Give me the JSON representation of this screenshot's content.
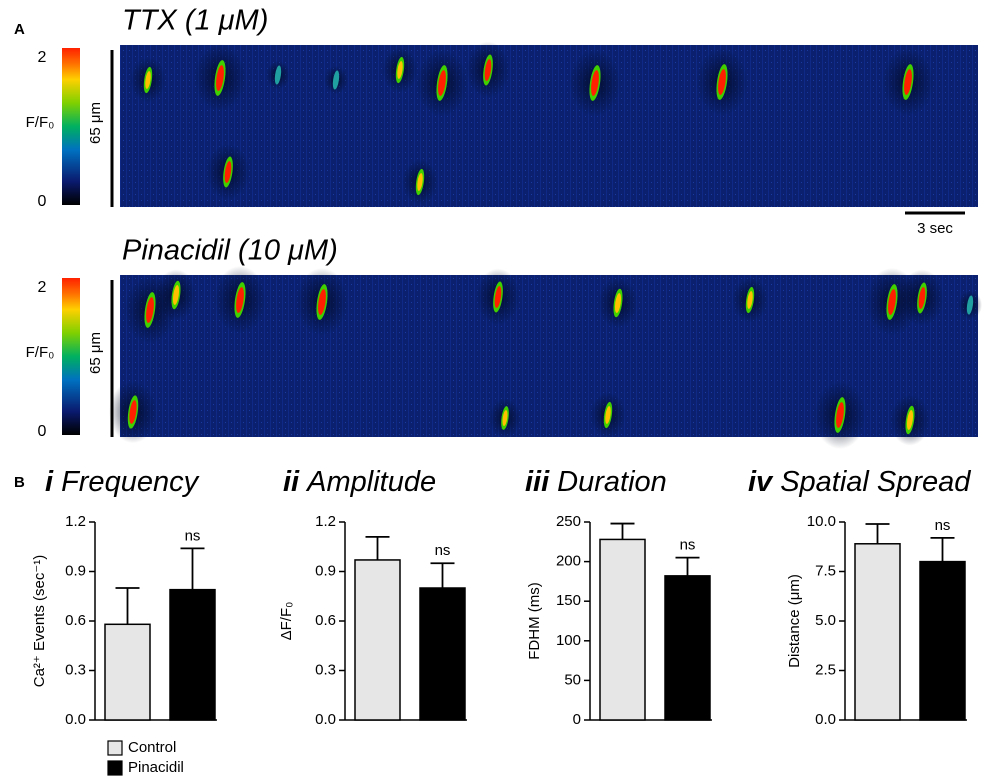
{
  "panel_a": {
    "label": "A",
    "time_scale": "3 sec",
    "panels": [
      {
        "title": "TTX (1 μM)",
        "colorbar_label": "F/F₀",
        "colorbar_ticks": [
          0,
          2
        ],
        "scale_label": "65 μm"
      },
      {
        "title": "Pinacidil (10 μM)",
        "colorbar_label": "F/F₀",
        "colorbar_ticks": [
          0,
          2
        ],
        "scale_label": "65 μm"
      }
    ]
  },
  "panel_b_label": "B",
  "legend": [
    {
      "name": "Control",
      "color": "#e6e6e6"
    },
    {
      "name": "Pinacidil",
      "color": "#000000"
    }
  ],
  "chart_data": [
    {
      "type": "bar",
      "numeral": "i",
      "title": "Frequency",
      "ylabel": "Ca²⁺ Events (sec⁻¹)",
      "values": [
        0.58,
        0.79
      ],
      "errors": [
        0.22,
        0.25
      ],
      "annotation": "ns",
      "ylim": [
        0,
        1.2
      ],
      "yticks": [
        {
          "value": 0,
          "label": "0.0"
        },
        0.3,
        0.6,
        0.9,
        1.2
      ]
    },
    {
      "type": "bar",
      "numeral": "ii",
      "title": "Amplitude",
      "ylabel": "ΔF/F₀",
      "values": [
        0.97,
        0.8
      ],
      "errors": [
        0.14,
        0.15
      ],
      "annotation": "ns",
      "ylim": [
        0,
        1.2
      ],
      "yticks": [
        {
          "value": 0,
          "label": "0.0"
        },
        0.3,
        0.6,
        0.9,
        1.2
      ]
    },
    {
      "type": "bar",
      "numeral": "iii",
      "title": "Duration",
      "ylabel": "FDHM (ms)",
      "values": [
        228,
        182
      ],
      "errors": [
        20,
        23
      ],
      "annotation": "ns",
      "ylim": [
        0,
        250
      ],
      "yticks": [
        0,
        50,
        100,
        150,
        200,
        250
      ]
    },
    {
      "type": "bar",
      "numeral": "iv",
      "title": "Spatial Spread",
      "ylabel": "Distance (μm)",
      "values": [
        8.9,
        8.0
      ],
      "errors": [
        1.0,
        1.2
      ],
      "annotation": "ns",
      "ylim": [
        0,
        10
      ],
      "yticks": [
        {
          "value": 0,
          "label": "0.0"
        },
        2.5,
        {
          "value": 5,
          "label": "5.0"
        },
        7.5,
        {
          "value": 10,
          "label": "10.0"
        }
      ]
    }
  ]
}
